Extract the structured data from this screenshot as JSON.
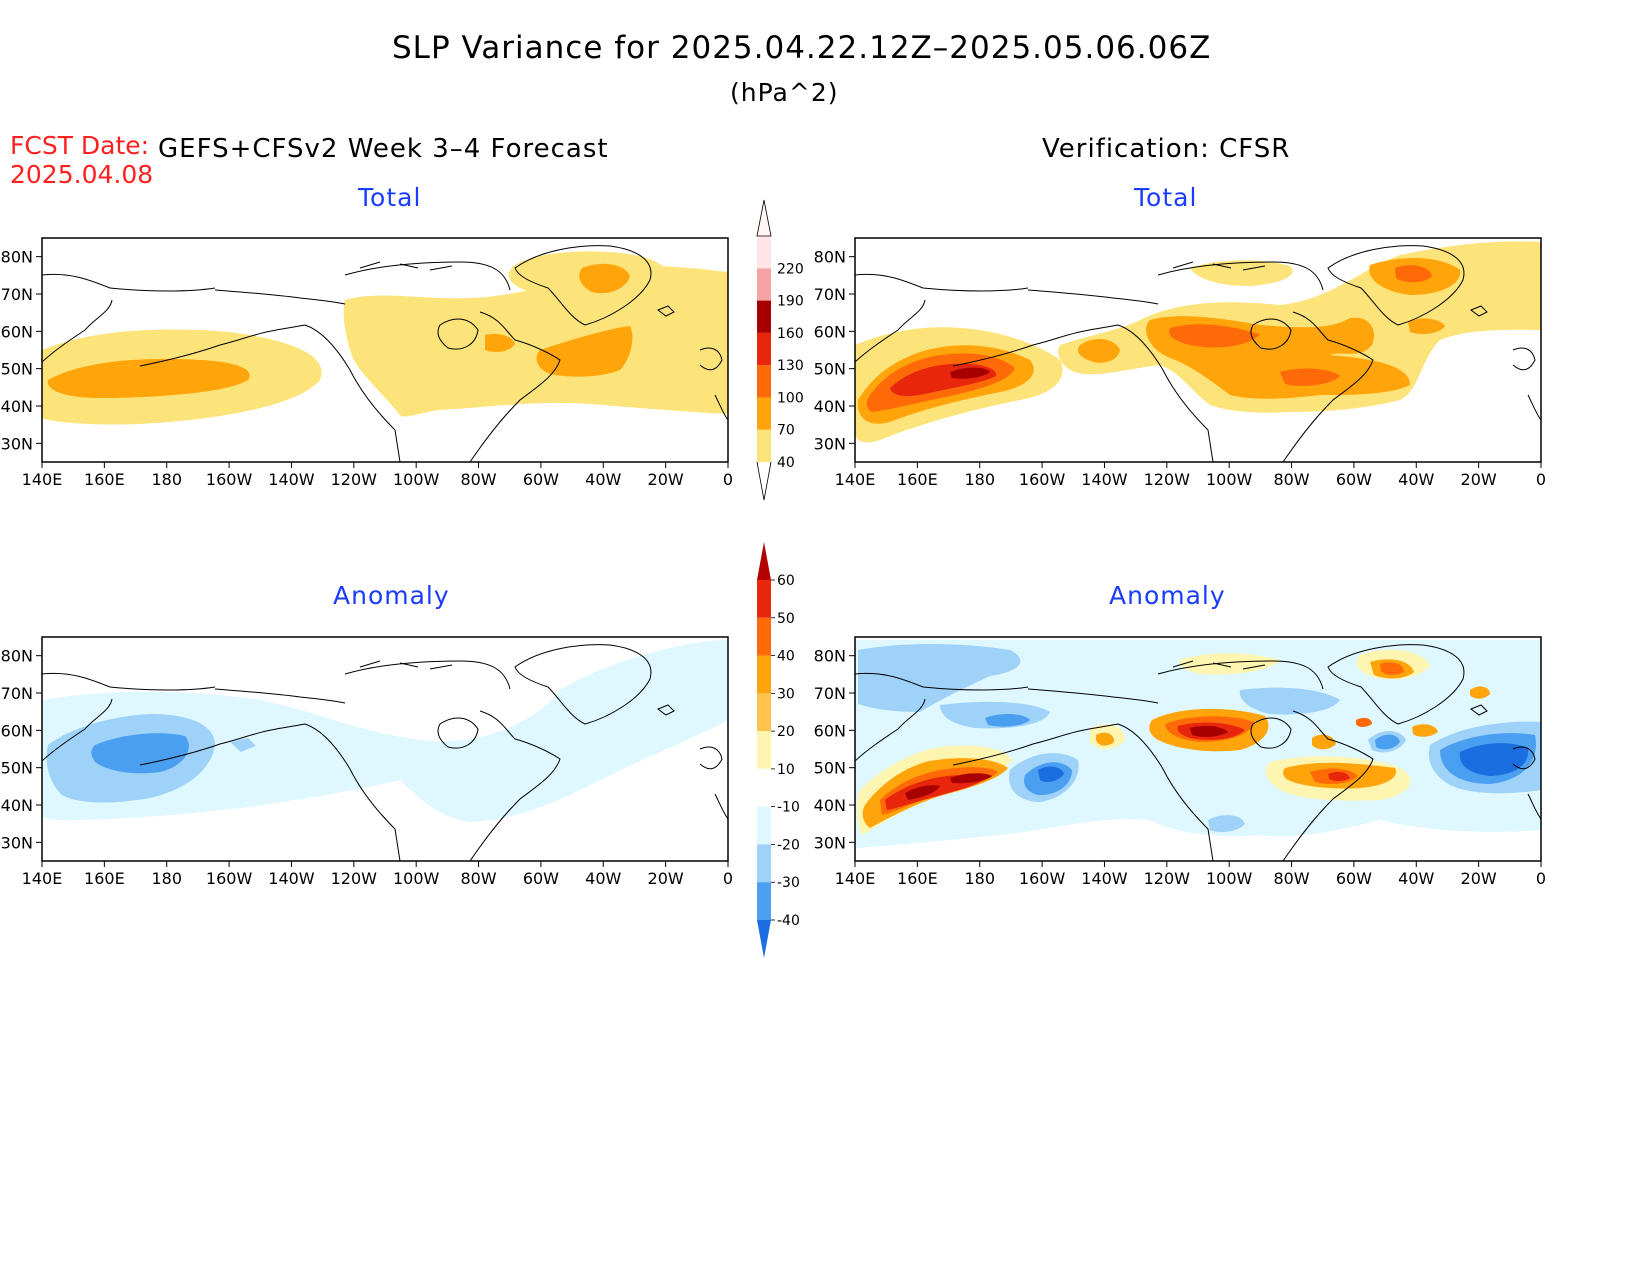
{
  "header": {
    "title": "SLP Variance for 2025.04.22.12Z–2025.05.06.06Z",
    "units": "(hPa^2)",
    "fcst_label": "FCST Date:",
    "fcst_date": "2025.04.08",
    "left_heading": "GEFS+CFSv2 Week 3–4 Forecast",
    "right_heading": "Verification: CFSR"
  },
  "panels": {
    "forecast_total": {
      "title": "Total"
    },
    "verif_total": {
      "title": "Total"
    },
    "forecast_anomaly": {
      "title": "Anomaly"
    },
    "verif_anomaly": {
      "title": "Anomaly"
    }
  },
  "axes": {
    "x_ticks": [
      "140E",
      "160E",
      "180",
      "160W",
      "140W",
      "120W",
      "100W",
      "80W",
      "60W",
      "40W",
      "20W",
      "0"
    ],
    "y_ticks": [
      "80N",
      "70N",
      "60N",
      "50N",
      "40N",
      "30N"
    ],
    "lon_range": [
      140,
      360
    ],
    "lat_range": [
      25,
      85
    ]
  },
  "colorbars": {
    "total": {
      "levels": [
        "40",
        "70",
        "100",
        "130",
        "160",
        "190",
        "220"
      ],
      "colors": [
        "#fde47a",
        "#ffa40a",
        "#ff6a08",
        "#e8260c",
        "#a80000",
        "#f4a3a3",
        "#ffe5e5"
      ]
    },
    "anomaly": {
      "levels": [
        "60",
        "50",
        "40",
        "30",
        "20",
        "10",
        "-10",
        "-20",
        "-30",
        "-40"
      ],
      "colors": [
        "#b30000",
        "#e8260c",
        "#ff6a08",
        "#ffa40a",
        "#ffc24a",
        "#fef5b0",
        "#ffffff",
        "#dff8ff",
        "#9fd2f8",
        "#4a9ff0",
        "#1a6ee0"
      ]
    }
  },
  "palette": {
    "yellow": "#fde47a",
    "orange": "#ffa40a",
    "dark_orange": "#ff6a08",
    "red": "#e8260c",
    "dark_red": "#a80000",
    "pale_yellow": "#fef5b0",
    "pale_blue": "#dff8ff",
    "light_blue": "#9fd2f8",
    "mid_blue": "#4a9ff0",
    "deep_blue": "#1a6ee0"
  }
}
